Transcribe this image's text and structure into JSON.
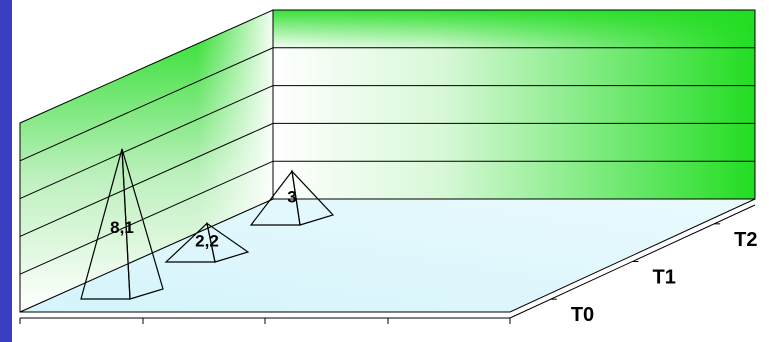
{
  "chart_data": {
    "type": "3d-pyramid",
    "title": "",
    "xlabel": "",
    "ylabel": "",
    "depth_categories": [
      "T0",
      "T1",
      "T2"
    ],
    "values": [
      8.1,
      2.2,
      3
    ],
    "data_labels": [
      "8,1",
      "2,2",
      "3"
    ],
    "ylim": [
      0,
      10
    ],
    "grid": true,
    "legend": "none"
  },
  "colors": {
    "left_bar": "#3a3fc2",
    "wall_green": "#22dd22",
    "floor_cyan": "#d8f4fc",
    "lines": "#000000"
  }
}
